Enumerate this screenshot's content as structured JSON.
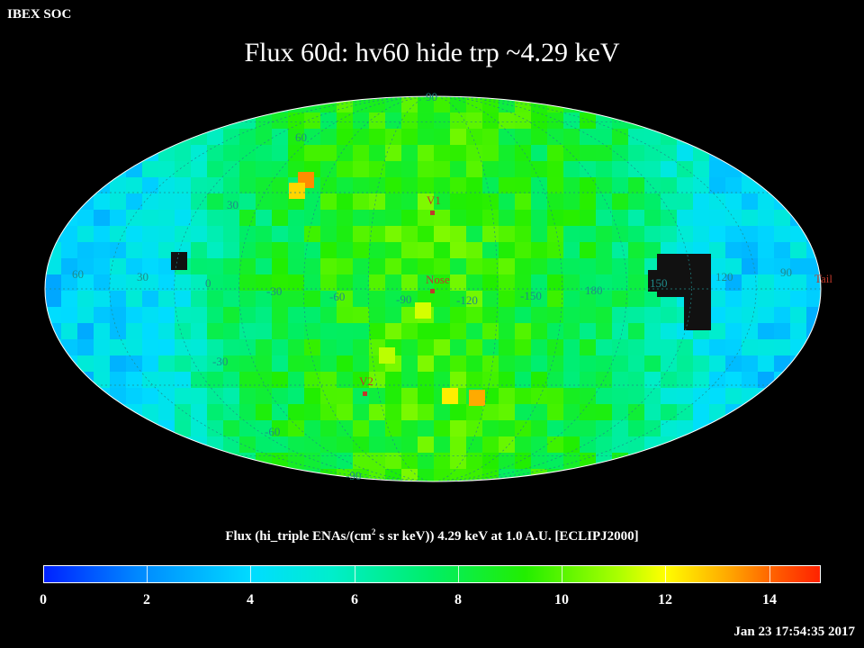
{
  "header": {
    "org": "IBEX SOC",
    "title": "Flux   60d: hv60 hide trp ~4.29 keV"
  },
  "map": {
    "projection": "Aitoff/Mollweide",
    "lat_labels": [
      {
        "text": "90",
        "lat": 90
      },
      {
        "text": "60",
        "lat": 60
      },
      {
        "text": "30",
        "lat": 30
      },
      {
        "text": "-30",
        "lat": -30
      },
      {
        "text": "-60",
        "lat": -60
      },
      {
        "text": "-90",
        "lat": -90
      }
    ],
    "lon_labels": [
      "60",
      "30",
      "0",
      "-30",
      "-60",
      "-90",
      "-120",
      "-150",
      "180",
      "150",
      "120",
      "90"
    ],
    "markers": [
      {
        "name": "V1",
        "label": "V1"
      },
      {
        "name": "Nose",
        "label": "Nose"
      },
      {
        "name": "V2",
        "label": "V2"
      },
      {
        "name": "Tail",
        "label": "Tail"
      }
    ],
    "colors": {
      "marker": "#c0392b",
      "grid": "#1f8a8a"
    }
  },
  "colorbar": {
    "title_main": "Flux (hi_triple ENAs/(cm",
    "title_sup": "2",
    "title_rest": " s sr keV))  4.29 keV at 1.0 A.U. [ECLIPJ2000]",
    "ticks": [
      "0",
      "2",
      "4",
      "6",
      "8",
      "10",
      "12",
      "14"
    ],
    "range": [
      0,
      15
    ]
  },
  "footer": {
    "timestamp": "Jan 23 17:54:35 2017"
  }
}
